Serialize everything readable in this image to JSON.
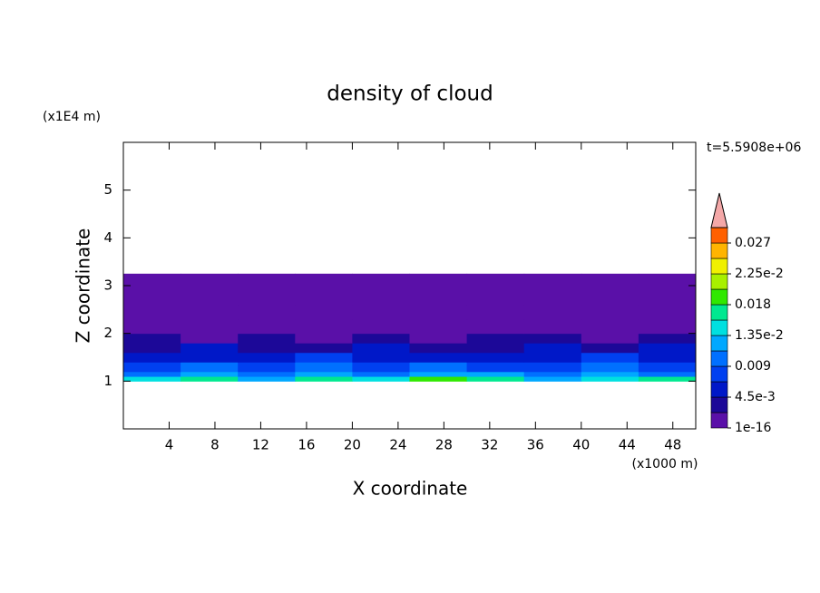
{
  "chart_data": {
    "type": "contour",
    "title": "density of cloud",
    "x_label": "X coordinate",
    "y_label": "Z coordinate",
    "x_unit": "(x1000 m)",
    "y_unit": "(x1E4 m)",
    "time_label": "t=5.5908e+06",
    "xlim": [
      0,
      50
    ],
    "ylim": [
      0,
      6
    ],
    "xticks": [
      4,
      8,
      12,
      16,
      20,
      24,
      28,
      32,
      36,
      40,
      44,
      48
    ],
    "yticks": [
      1,
      2,
      3,
      4,
      5
    ],
    "x_edges": [
      0,
      5,
      10,
      15,
      20,
      25,
      30,
      35,
      40,
      45,
      50
    ],
    "y_edges": [
      1.0,
      1.1,
      1.2,
      1.4,
      1.6,
      1.8,
      2.0,
      2.3,
      2.6,
      3.0,
      3.25
    ],
    "values": [
      [
        0.014,
        0.016,
        0.013,
        0.017,
        0.015,
        0.018,
        0.016,
        0.013,
        0.015,
        0.017
      ],
      [
        0.011,
        0.012,
        0.01,
        0.012,
        0.011,
        0.013,
        0.012,
        0.01,
        0.012,
        0.011
      ],
      [
        0.008,
        0.009,
        0.007,
        0.01,
        0.008,
        0.009,
        0.008,
        0.007,
        0.009,
        0.008
      ],
      [
        0.006,
        0.005,
        0.006,
        0.007,
        0.005,
        0.006,
        0.005,
        0.006,
        0.007,
        0.006
      ],
      [
        0.004,
        0.005,
        0.003,
        0.004,
        0.005,
        0.003,
        0.004,
        0.005,
        0.004,
        0.005
      ],
      [
        0.003,
        0.002,
        0.003,
        0.002,
        0.003,
        0.002,
        0.003,
        0.003,
        0.002,
        0.003
      ],
      [
        0.001,
        0.002,
        0.001,
        0.001,
        0.002,
        0.001,
        0.002,
        0.001,
        0.002,
        0.001
      ],
      [
        0.0008,
        0.0005,
        0.0009,
        0.0004,
        0.0006,
        0.0008,
        0.0005,
        0.0007,
        0.0009,
        0.0006
      ],
      [
        0.0004,
        0.0003,
        0.0005,
        0.0002,
        0.0004,
        0.0003,
        0.0004,
        0.0002,
        0.0003,
        0.0004
      ],
      [
        0.0002,
        0.0001,
        0.0001,
        0.0002,
        0.0001,
        0.0002,
        0.0001,
        0.0002,
        0.0001,
        0.0002
      ]
    ],
    "colorbar": {
      "levels": [
        1e-16,
        0.00225,
        0.0045,
        0.00675,
        0.009,
        0.01125,
        0.0135,
        0.01575,
        0.018,
        0.02025,
        0.0225,
        0.02475,
        0.027,
        0.02925
      ],
      "colors": [
        "#5a10a8",
        "#1c0898",
        "#0018c8",
        "#0040f0",
        "#0070ff",
        "#00a8ff",
        "#00e0e0",
        "#00e890",
        "#30e800",
        "#a8f000",
        "#f0f000",
        "#ffb400",
        "#ff6000"
      ],
      "extend_color": "#f4a8a8",
      "ticks": [
        {
          "value": 1e-16,
          "label": "1e-16"
        },
        {
          "value": 0.0045,
          "label": "4.5e-3"
        },
        0.009,
        {
          "value": 0.0135,
          "label": "1.35e-2"
        },
        0.018,
        {
          "value": 0.0225,
          "label": "2.25e-2"
        },
        0.027
      ]
    }
  }
}
